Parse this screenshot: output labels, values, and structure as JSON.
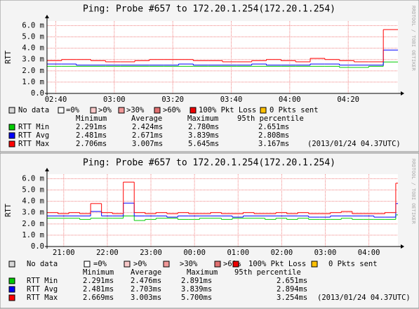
{
  "chart_data": [
    {
      "type": "line",
      "title": "Ping: Probe #657 to 172.20.1.254(172.20.1.254)",
      "y_label": "RTT",
      "watermark": "RRDTOOL / TOBI OETIKER",
      "xlim": [
        "02:37",
        "04:37"
      ],
      "xticks": [
        "02:40",
        "03:00",
        "03:20",
        "03:40",
        "04:00",
        "04:20"
      ],
      "ylim": [
        0,
        6.4
      ],
      "yticks": [
        {
          "value": 0,
          "label": "0.0"
        },
        {
          "value": 1,
          "label": "1.0 m"
        },
        {
          "value": 2,
          "label": "2.0 m"
        },
        {
          "value": 3,
          "label": "3.0 m"
        },
        {
          "value": 4,
          "label": "4.0 m"
        },
        {
          "value": 5,
          "label": "5.0 m"
        },
        {
          "value": 6,
          "label": "6.0 m"
        }
      ],
      "grid": true,
      "x": [
        "02:37",
        "02:42",
        "02:47",
        "02:52",
        "02:57",
        "03:02",
        "03:07",
        "03:12",
        "03:17",
        "03:22",
        "03:27",
        "03:32",
        "03:37",
        "03:42",
        "03:47",
        "03:52",
        "03:57",
        "04:02",
        "04:07",
        "04:12",
        "04:17",
        "04:22",
        "04:27",
        "04:32"
      ],
      "series": [
        {
          "name": "RTT Min",
          "color": "#00cc00",
          "stats": [
            "2.291ms",
            "2.424ms",
            "2.780ms",
            "2.651ms"
          ],
          "values": [
            2.4,
            2.4,
            2.4,
            2.4,
            2.4,
            2.4,
            2.4,
            2.4,
            2.4,
            2.4,
            2.4,
            2.4,
            2.4,
            2.4,
            2.4,
            2.4,
            2.4,
            2.4,
            2.4,
            2.4,
            2.3,
            2.3,
            2.4,
            2.78
          ]
        },
        {
          "name": "RTT Avg",
          "color": "#0000ff",
          "stats": [
            "2.481ms",
            "2.671ms",
            "3.839ms",
            "2.808ms"
          ],
          "values": [
            2.6,
            2.6,
            2.5,
            2.5,
            2.5,
            2.5,
            2.5,
            2.5,
            2.5,
            2.6,
            2.5,
            2.5,
            2.5,
            2.5,
            2.6,
            2.5,
            2.5,
            2.5,
            2.6,
            2.6,
            2.5,
            2.5,
            2.5,
            3.839
          ]
        },
        {
          "name": "RTT Max",
          "color": "#ff0000",
          "stats": [
            "2.706ms",
            "3.007ms",
            "5.645ms",
            "3.167ms"
          ],
          "values": [
            2.9,
            3.0,
            3.0,
            2.9,
            2.8,
            2.8,
            2.9,
            3.0,
            3.0,
            3.0,
            2.9,
            2.9,
            2.8,
            2.8,
            2.9,
            3.0,
            2.9,
            2.8,
            3.1,
            3.0,
            2.9,
            2.8,
            2.8,
            5.645
          ]
        }
      ],
      "stats_header": [
        "Minimum",
        "Average",
        "Maximum",
        "95th percentile"
      ],
      "timestamp": "(2013/01/24 04.37UTC)",
      "loss_legend": [
        {
          "label": "No data",
          "color": "#d8d8d8"
        },
        {
          "label": "=0%",
          "color": "#ffffff"
        },
        {
          "label": ">0%",
          "color": "#f8c8c8"
        },
        {
          "label": ">30%",
          "color": "#f09898"
        },
        {
          "label": ">60%",
          "color": "#e07070"
        },
        {
          "label": "100% Pkt Loss",
          "color": "#ee0000"
        },
        {
          "label": "0 Pkts sent",
          "color": "#ffc000"
        }
      ]
    },
    {
      "type": "line",
      "title": "Ping: Probe #657 to 172.20.1.254(172.20.1.254)",
      "y_label": "RTT",
      "watermark": "RRDTOOL / TOBI OETIKER",
      "xlim": [
        "20:37",
        "04:40"
      ],
      "xticks": [
        "21:00",
        "22:00",
        "23:00",
        "00:00",
        "01:00",
        "02:00",
        "03:00",
        "04:00"
      ],
      "ylim": [
        0,
        6.4
      ],
      "yticks": [
        {
          "value": 0,
          "label": "0.0"
        },
        {
          "value": 1,
          "label": "1.0 m"
        },
        {
          "value": 2,
          "label": "2.0 m"
        },
        {
          "value": 3,
          "label": "3.0 m"
        },
        {
          "value": 4,
          "label": "4.0 m"
        },
        {
          "value": 5,
          "label": "5.0 m"
        },
        {
          "value": 6,
          "label": "6.0 m"
        }
      ],
      "grid": true,
      "x": [
        "20:37",
        "20:52",
        "21:07",
        "21:22",
        "21:37",
        "21:52",
        "22:07",
        "22:22",
        "22:37",
        "22:52",
        "23:07",
        "23:22",
        "23:37",
        "23:52",
        "00:07",
        "00:22",
        "00:37",
        "00:52",
        "01:07",
        "01:22",
        "01:37",
        "01:52",
        "02:07",
        "02:22",
        "02:37",
        "02:52",
        "03:07",
        "03:22",
        "03:37",
        "03:52",
        "04:07",
        "04:22",
        "04:37"
      ],
      "series": [
        {
          "name": "RTT Min",
          "color": "#00cc00",
          "stats": [
            "2.291ms",
            "2.476ms",
            "2.891ms",
            "2.651ms"
          ],
          "values": [
            2.5,
            2.5,
            2.5,
            2.4,
            2.5,
            2.5,
            2.5,
            2.7,
            2.3,
            2.4,
            2.5,
            2.5,
            2.4,
            2.4,
            2.5,
            2.5,
            2.4,
            2.5,
            2.5,
            2.5,
            2.4,
            2.5,
            2.4,
            2.5,
            2.4,
            2.4,
            2.4,
            2.5,
            2.4,
            2.4,
            2.4,
            2.4,
            2.8
          ]
        },
        {
          "name": "RTT Avg",
          "color": "#0000ff",
          "stats": [
            "2.481ms",
            "2.703ms",
            "3.839ms",
            "2.894ms"
          ],
          "values": [
            2.7,
            2.7,
            2.7,
            2.7,
            3.1,
            2.7,
            2.7,
            3.839,
            2.7,
            2.7,
            2.7,
            2.6,
            2.7,
            2.7,
            2.7,
            2.7,
            2.7,
            2.6,
            2.7,
            2.7,
            2.7,
            2.7,
            2.7,
            2.7,
            2.6,
            2.6,
            2.7,
            2.7,
            2.7,
            2.7,
            2.6,
            2.6,
            3.8
          ]
        },
        {
          "name": "RTT Max",
          "color": "#ff0000",
          "stats": [
            "2.669ms",
            "3.003ms",
            "5.700ms",
            "3.254ms"
          ],
          "values": [
            3.0,
            2.9,
            3.0,
            2.9,
            3.8,
            3.0,
            2.9,
            5.7,
            3.0,
            2.9,
            3.0,
            2.9,
            3.0,
            2.9,
            2.9,
            3.0,
            2.9,
            2.9,
            3.0,
            2.9,
            2.9,
            3.0,
            2.9,
            3.0,
            2.9,
            2.9,
            3.0,
            3.1,
            2.9,
            2.9,
            2.9,
            3.0,
            5.6
          ]
        }
      ],
      "stats_header": [
        "Minimum",
        "Average",
        "Maximum",
        "95th percentile"
      ],
      "timestamp": "(2013/01/24 04.37UTC)",
      "loss_legend": [
        {
          "label": "No data",
          "color": "#d8d8d8"
        },
        {
          "label": "=0%",
          "color": "#ffffff"
        },
        {
          "label": ">0%",
          "color": "#f8c8c8"
        },
        {
          "label": ">30%",
          "color": "#f09898"
        },
        {
          "label": ">60%",
          "color": "#e07070"
        },
        {
          "label": "100% Pkt Loss",
          "color": "#ee0000"
        },
        {
          "label": "0 Pkts sent",
          "color": "#ffc000"
        }
      ]
    }
  ]
}
